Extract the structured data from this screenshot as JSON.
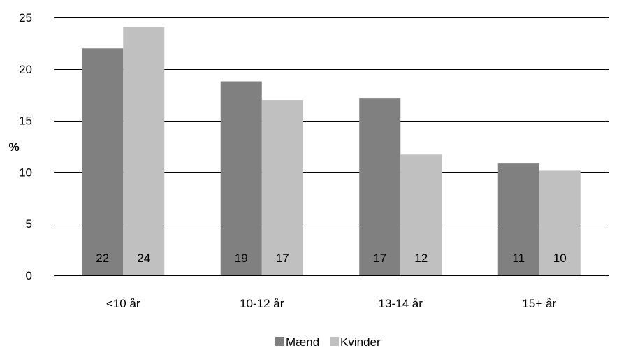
{
  "chart_data": {
    "type": "bar",
    "ylabel": "%",
    "ylim": [
      0,
      25
    ],
    "yticks": [
      0,
      5,
      10,
      15,
      20,
      25
    ],
    "categories": [
      "<10 år",
      "10-12 år",
      "13-14 år",
      "15+ år"
    ],
    "series": [
      {
        "name": "Mænd",
        "color": "#808080",
        "values": [
          22,
          18.8,
          17.2,
          10.9
        ],
        "labels": [
          "22",
          "19",
          "17",
          "11"
        ]
      },
      {
        "name": "Kvinder",
        "color": "#c0c0c0",
        "values": [
          24.1,
          17,
          11.7,
          10.2
        ],
        "labels": [
          "24",
          "17",
          "12",
          "10"
        ]
      }
    ],
    "grid": true,
    "legend": "bottom-center"
  }
}
